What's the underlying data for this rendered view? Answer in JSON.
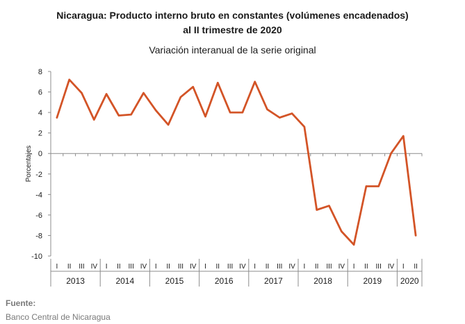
{
  "chart_data": {
    "type": "line",
    "title_line1": "Nicaragua: Producto interno bruto en constantes (volúmenes encadenados)",
    "title_line2": "al II trimestre de 2020",
    "subtitle": "Variación interanual de la serie original",
    "ylabel": "Porcentajes",
    "xlabel": "",
    "ylim": [
      -10,
      8
    ],
    "yticks": [
      8,
      6,
      4,
      2,
      0,
      -2,
      -4,
      -6,
      -8,
      -10
    ],
    "grid": false,
    "legend": "none",
    "line_color": "#d35427",
    "quarters": [
      "I",
      "II",
      "III",
      "IV",
      "I",
      "II",
      "III",
      "IV",
      "I",
      "II",
      "III",
      "IV",
      "I",
      "II",
      "III",
      "IV",
      "I",
      "II",
      "III",
      "IV",
      "I",
      "II",
      "III",
      "IV",
      "I",
      "II",
      "III",
      "IV",
      "I",
      "II"
    ],
    "years": [
      {
        "label": "2013",
        "quarters": 4
      },
      {
        "label": "2014",
        "quarters": 4
      },
      {
        "label": "2015",
        "quarters": 4
      },
      {
        "label": "2016",
        "quarters": 4
      },
      {
        "label": "2017",
        "quarters": 4
      },
      {
        "label": "2018",
        "quarters": 4
      },
      {
        "label": "2019",
        "quarters": 4
      },
      {
        "label": "2020",
        "quarters": 2
      }
    ],
    "series": [
      {
        "values": [
          3.5,
          7.2,
          5.9,
          3.3,
          5.8,
          3.7,
          3.8,
          5.9,
          4.2,
          2.8,
          5.5,
          6.5,
          3.6,
          6.9,
          4.0,
          4.0,
          7.0,
          4.3,
          3.5,
          3.9,
          2.6,
          -5.5,
          -5.1,
          -7.6,
          -8.9,
          -3.2,
          -3.2,
          0.0,
          1.7,
          -8.0
        ]
      }
    ]
  },
  "source": {
    "label": "Fuente:",
    "value": "Banco Central de Nicaragua"
  }
}
